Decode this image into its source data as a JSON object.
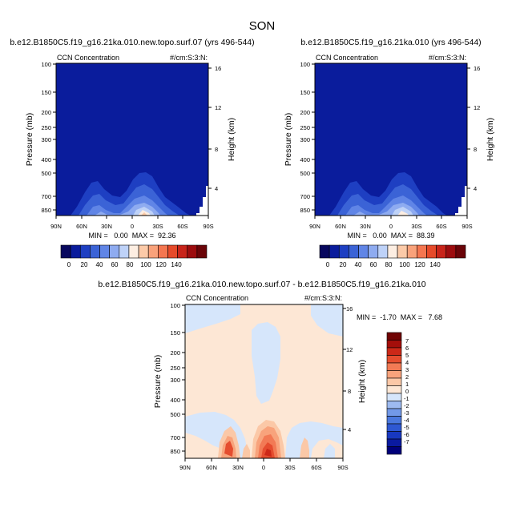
{
  "page_title": "SON",
  "colors": {
    "top_palette": [
      "#08085e",
      "#0a1c9c",
      "#1e3fc2",
      "#3b63d6",
      "#6085e6",
      "#8eabf0",
      "#bed2f8",
      "#fdeee2",
      "#fccaa8",
      "#f9a27b",
      "#f47650",
      "#e64a2a",
      "#c8241a",
      "#9c0c0e",
      "#6a0408"
    ],
    "diff_palette": [
      "#00007a",
      "#0a1aa0",
      "#1838c0",
      "#2e58d2",
      "#4a78de",
      "#7299e8",
      "#9dbaf0",
      "#d6e6fb",
      "#fde7d5",
      "#fbc8a7",
      "#f8a37c",
      "#f27a55",
      "#e54d2f",
      "#cc2818",
      "#a40e0a",
      "#700404"
    ]
  },
  "panels": {
    "left": {
      "title": "b.e12.B1850C5.f19_g16.21ka.010.new.topo.surf.07 (yrs 496-544)",
      "left_label": "CCN Concentration",
      "right_label": "#/cm:S:3:N:",
      "y_axis_title": "Pressure (mb)",
      "y2_axis_title": "Height (km)",
      "stats": "MIN =   0.00  MAX =  92.36"
    },
    "right": {
      "title": "b.e12.B1850C5.f19_g16.21ka.010 (yrs 496-544)",
      "left_label": "CCN Concentration",
      "right_label": "#/cm:S:3:N:",
      "y_axis_title": "Pressure (mb)",
      "y2_axis_title": "Height (km)",
      "stats": "MIN =   0.00  MAX =  88.39"
    },
    "diff": {
      "title": "b.e12.B1850C5.f19_g16.21ka.010.new.topo.surf.07 - b.e12.B1850C5.f19_g16.21ka.010",
      "left_label": "CCN Concentration",
      "right_label": "#/cm:S:3:N:",
      "y_axis_title": "Pressure (mb)",
      "y2_axis_title": "Height (km)",
      "stats": "MIN =  -1.70  MAX =   7.68"
    }
  },
  "chart_data": [
    {
      "type": "heatmap",
      "panel": "left",
      "title": "b.e12.B1850C5.f19_g16.21ka.010.new.topo.surf.07 (yrs 496-544)",
      "x_ticks": [
        "90N",
        "60N",
        "30N",
        "0",
        "30S",
        "60S",
        "90S"
      ],
      "x_values": [
        90,
        60,
        30,
        0,
        -30,
        -60,
        -90
      ],
      "y_ticks": [
        "100",
        "150",
        "200",
        "250",
        "300",
        "400",
        "500",
        "700",
        "850"
      ],
      "y_values": [
        100,
        150,
        200,
        250,
        300,
        400,
        500,
        700,
        850
      ],
      "ylim": [
        100,
        1000
      ],
      "y2_ticks": [
        "4",
        "8",
        "12",
        "16"
      ],
      "y2_values": [
        4,
        8,
        12,
        16
      ],
      "colorbar_ticks": [
        "0",
        "20",
        "40",
        "60",
        "80",
        "100",
        "120",
        "140"
      ],
      "colorbar_values": [
        0,
        20,
        40,
        60,
        80,
        100,
        120,
        140
      ],
      "min": 0.0,
      "max": 92.36
    },
    {
      "type": "heatmap",
      "panel": "right",
      "title": "b.e12.B1850C5.f19_g16.21ka.010 (yrs 496-544)",
      "x_ticks": [
        "90N",
        "60N",
        "30N",
        "0",
        "30S",
        "60S",
        "90S"
      ],
      "x_values": [
        90,
        60,
        30,
        0,
        -30,
        -60,
        -90
      ],
      "y_ticks": [
        "100",
        "150",
        "200",
        "250",
        "300",
        "400",
        "500",
        "700",
        "850"
      ],
      "y_values": [
        100,
        150,
        200,
        250,
        300,
        400,
        500,
        700,
        850
      ],
      "ylim": [
        100,
        1000
      ],
      "y2_ticks": [
        "4",
        "8",
        "12",
        "16"
      ],
      "y2_values": [
        4,
        8,
        12,
        16
      ],
      "colorbar_ticks": [
        "0",
        "20",
        "40",
        "60",
        "80",
        "100",
        "120",
        "140"
      ],
      "colorbar_values": [
        0,
        20,
        40,
        60,
        80,
        100,
        120,
        140
      ],
      "min": 0.0,
      "max": 88.39
    },
    {
      "type": "heatmap",
      "panel": "diff",
      "title": "b.e12.B1850C5.f19_g16.21ka.010.new.topo.surf.07 - b.e12.B1850C5.f19_g16.21ka.010",
      "x_ticks": [
        "90N",
        "60N",
        "30N",
        "0",
        "30S",
        "60S",
        "90S"
      ],
      "x_values": [
        90,
        60,
        30,
        0,
        -30,
        -60,
        -90
      ],
      "y_ticks": [
        "100",
        "150",
        "200",
        "250",
        "300",
        "400",
        "500",
        "700",
        "850"
      ],
      "y_values": [
        100,
        150,
        200,
        250,
        300,
        400,
        500,
        700,
        850
      ],
      "ylim": [
        100,
        1000
      ],
      "y2_ticks": [
        "4",
        "8",
        "12",
        "16"
      ],
      "y2_values": [
        4,
        8,
        12,
        16
      ],
      "colorbar_ticks": [
        "7",
        "6",
        "5",
        "4",
        "3",
        "2",
        "1",
        "0",
        "-1",
        "-2",
        "-3",
        "-4",
        "-5",
        "-6",
        "-7"
      ],
      "colorbar_values": [
        7,
        6,
        5,
        4,
        3,
        2,
        1,
        0,
        -1,
        -2,
        -3,
        -4,
        -5,
        -6,
        -7
      ],
      "min": -1.7,
      "max": 7.68
    }
  ]
}
